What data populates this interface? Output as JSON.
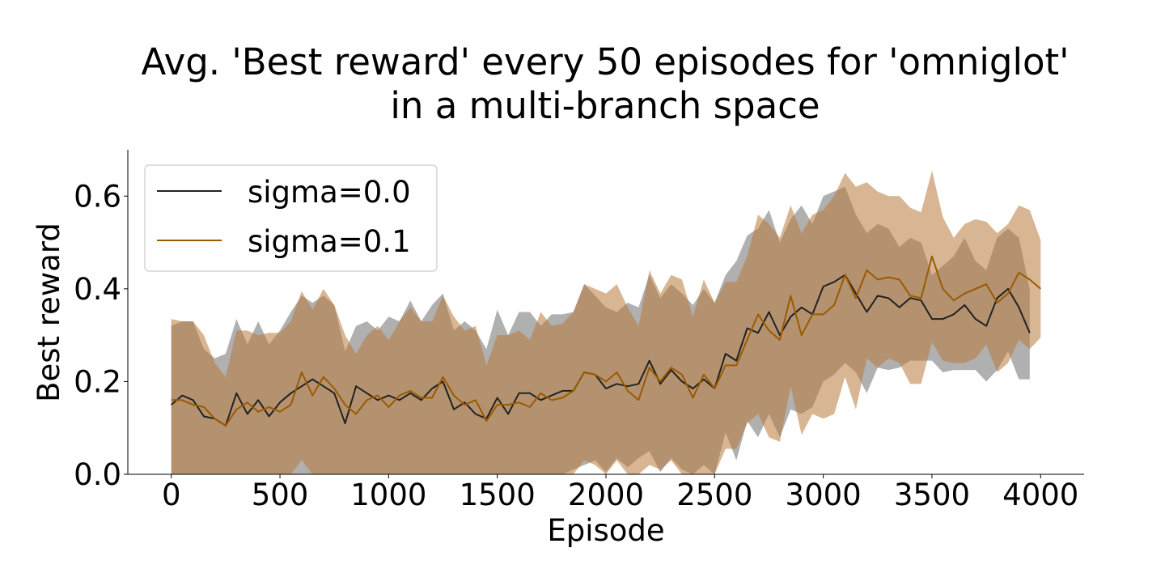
{
  "chart_data": {
    "type": "line",
    "title_line1": "Avg. 'Best reward' every 50 episodes for 'omniglot'",
    "title_line2": "in a multi-branch space",
    "xlabel": "Episode",
    "ylabel": "Best reward",
    "xlim": [
      -200,
      4200
    ],
    "ylim": [
      0.0,
      0.7
    ],
    "xticks": [
      0,
      500,
      1000,
      1500,
      2000,
      2500,
      3000,
      3500,
      4000
    ],
    "xtick_labels": [
      "0",
      "500",
      "1000",
      "1500",
      "2000",
      "2500",
      "3000",
      "3500",
      "4000"
    ],
    "yticks": [
      0.0,
      0.2,
      0.4,
      0.6
    ],
    "ytick_labels": [
      "0.0",
      "0.2",
      "0.4",
      "0.6"
    ],
    "grid": false,
    "legend_position": "upper-left",
    "series": [
      {
        "name": "sigma=0.0",
        "color": "#222222",
        "band_color": "#7f7f7f",
        "x": [
          0,
          50,
          100,
          150,
          200,
          250,
          300,
          350,
          400,
          450,
          500,
          550,
          600,
          650,
          700,
          750,
          800,
          850,
          900,
          950,
          1000,
          1050,
          1100,
          1150,
          1200,
          1250,
          1300,
          1350,
          1400,
          1450,
          1500,
          1550,
          1600,
          1650,
          1700,
          1750,
          1800,
          1850,
          1900,
          1950,
          2000,
          2050,
          2100,
          2150,
          2200,
          2250,
          2300,
          2350,
          2400,
          2450,
          2500,
          2550,
          2600,
          2650,
          2700,
          2750,
          2800,
          2850,
          2900,
          2950,
          3000,
          3050,
          3100,
          3150,
          3200,
          3250,
          3300,
          3350,
          3400,
          3450,
          3500,
          3550,
          3600,
          3650,
          3700,
          3750,
          3800,
          3850,
          3900,
          3950
        ],
        "values": [
          0.15,
          0.17,
          0.16,
          0.125,
          0.12,
          0.105,
          0.175,
          0.13,
          0.16,
          0.125,
          0.155,
          0.175,
          0.19,
          0.205,
          0.19,
          0.175,
          0.11,
          0.19,
          0.175,
          0.16,
          0.17,
          0.16,
          0.175,
          0.16,
          0.185,
          0.2,
          0.14,
          0.155,
          0.13,
          0.12,
          0.165,
          0.13,
          0.175,
          0.175,
          0.16,
          0.17,
          0.18,
          0.18,
          0.22,
          0.215,
          0.185,
          0.195,
          0.19,
          0.195,
          0.245,
          0.195,
          0.225,
          0.2,
          0.185,
          0.205,
          0.185,
          0.26,
          0.245,
          0.315,
          0.305,
          0.35,
          0.3,
          0.34,
          0.36,
          0.345,
          0.405,
          0.415,
          0.43,
          0.39,
          0.35,
          0.385,
          0.38,
          0.36,
          0.38,
          0.375,
          0.335,
          0.335,
          0.345,
          0.365,
          0.335,
          0.32,
          0.38,
          0.4,
          0.36,
          0.305
        ],
        "lower": [
          0.0,
          0.0,
          0.0,
          0.0,
          0.0,
          0.0,
          0.0,
          0.0,
          0.0,
          0.0,
          0.0,
          0.0,
          0.0,
          0.0,
          0.0,
          0.0,
          0.0,
          0.0,
          0.0,
          0.0,
          0.0,
          0.0,
          0.0,
          0.0,
          0.0,
          0.0,
          0.0,
          0.0,
          0.0,
          0.0,
          0.0,
          0.0,
          0.0,
          0.0,
          0.0,
          0.0,
          0.0,
          0.01,
          0.02,
          0.03,
          0.005,
          0.035,
          0.015,
          0.035,
          0.05,
          0.005,
          0.035,
          0.01,
          0.0,
          0.02,
          0.0,
          0.09,
          0.03,
          0.115,
          0.08,
          0.13,
          0.08,
          0.14,
          0.13,
          0.145,
          0.2,
          0.215,
          0.24,
          0.22,
          0.175,
          0.23,
          0.225,
          0.23,
          0.245,
          0.245,
          0.245,
          0.22,
          0.225,
          0.225,
          0.225,
          0.2,
          0.225,
          0.265,
          0.205,
          0.205
        ],
        "upper": [
          0.32,
          0.33,
          0.33,
          0.27,
          0.25,
          0.26,
          0.335,
          0.28,
          0.33,
          0.28,
          0.31,
          0.35,
          0.385,
          0.37,
          0.385,
          0.365,
          0.265,
          0.32,
          0.33,
          0.31,
          0.34,
          0.33,
          0.375,
          0.33,
          0.365,
          0.39,
          0.31,
          0.33,
          0.31,
          0.27,
          0.355,
          0.3,
          0.35,
          0.35,
          0.32,
          0.345,
          0.345,
          0.35,
          0.41,
          0.385,
          0.36,
          0.35,
          0.37,
          0.36,
          0.43,
          0.38,
          0.41,
          0.39,
          0.365,
          0.4,
          0.37,
          0.43,
          0.46,
          0.515,
          0.53,
          0.57,
          0.5,
          0.55,
          0.58,
          0.54,
          0.6,
          0.61,
          0.62,
          0.56,
          0.52,
          0.54,
          0.53,
          0.49,
          0.51,
          0.5,
          0.43,
          0.45,
          0.47,
          0.51,
          0.46,
          0.44,
          0.51,
          0.53,
          0.51,
          0.4
        ]
      },
      {
        "name": "sigma=0.1",
        "color": "#9a5a00",
        "band_color": "#b87a3a",
        "x": [
          0,
          50,
          100,
          150,
          200,
          250,
          300,
          350,
          400,
          450,
          500,
          550,
          600,
          650,
          700,
          750,
          800,
          850,
          900,
          950,
          1000,
          1050,
          1100,
          1150,
          1200,
          1250,
          1300,
          1350,
          1400,
          1450,
          1500,
          1550,
          1600,
          1650,
          1700,
          1750,
          1800,
          1850,
          1900,
          1950,
          2000,
          2050,
          2100,
          2150,
          2200,
          2250,
          2300,
          2350,
          2400,
          2450,
          2500,
          2550,
          2600,
          2650,
          2700,
          2750,
          2800,
          2850,
          2900,
          2950,
          3000,
          3050,
          3100,
          3150,
          3200,
          3250,
          3300,
          3350,
          3400,
          3450,
          3500,
          3550,
          3600,
          3650,
          3700,
          3750,
          3800,
          3850,
          3900,
          3950,
          4000
        ],
        "values": [
          0.16,
          0.16,
          0.15,
          0.145,
          0.12,
          0.105,
          0.14,
          0.155,
          0.135,
          0.145,
          0.135,
          0.15,
          0.22,
          0.17,
          0.21,
          0.185,
          0.15,
          0.13,
          0.16,
          0.17,
          0.145,
          0.17,
          0.18,
          0.165,
          0.165,
          0.21,
          0.17,
          0.15,
          0.16,
          0.115,
          0.15,
          0.15,
          0.155,
          0.145,
          0.175,
          0.16,
          0.165,
          0.18,
          0.22,
          0.215,
          0.2,
          0.22,
          0.18,
          0.16,
          0.23,
          0.2,
          0.23,
          0.215,
          0.165,
          0.215,
          0.185,
          0.235,
          0.235,
          0.29,
          0.345,
          0.31,
          0.29,
          0.385,
          0.3,
          0.345,
          0.345,
          0.365,
          0.43,
          0.38,
          0.44,
          0.42,
          0.425,
          0.42,
          0.385,
          0.38,
          0.47,
          0.4,
          0.375,
          0.39,
          0.4,
          0.41,
          0.37,
          0.39,
          0.435,
          0.42,
          0.4
        ],
        "lower": [
          0.0,
          0.0,
          0.0,
          0.0,
          0.0,
          0.0,
          0.0,
          0.0,
          0.0,
          0.0,
          0.0,
          0.0,
          0.03,
          0.0,
          0.0,
          0.0,
          0.0,
          0.0,
          0.0,
          0.0,
          0.0,
          0.0,
          0.0,
          0.0,
          0.0,
          0.0,
          0.0,
          0.0,
          0.0,
          0.0,
          0.0,
          0.0,
          0.0,
          0.0,
          0.0,
          0.0,
          0.0,
          0.0,
          0.03,
          0.02,
          0.0,
          0.03,
          0.0,
          0.0,
          0.02,
          0.01,
          0.03,
          0.0,
          0.0,
          0.0,
          0.0,
          0.055,
          0.055,
          0.11,
          0.13,
          0.08,
          0.07,
          0.19,
          0.085,
          0.13,
          0.12,
          0.13,
          0.21,
          0.14,
          0.25,
          0.23,
          0.25,
          0.24,
          0.195,
          0.195,
          0.285,
          0.245,
          0.24,
          0.24,
          0.25,
          0.28,
          0.22,
          0.24,
          0.29,
          0.27,
          0.295
        ],
        "upper": [
          0.335,
          0.33,
          0.33,
          0.3,
          0.24,
          0.21,
          0.31,
          0.31,
          0.3,
          0.305,
          0.305,
          0.33,
          0.395,
          0.355,
          0.4,
          0.365,
          0.3,
          0.26,
          0.3,
          0.32,
          0.29,
          0.33,
          0.36,
          0.33,
          0.33,
          0.385,
          0.34,
          0.31,
          0.32,
          0.235,
          0.3,
          0.3,
          0.31,
          0.29,
          0.35,
          0.32,
          0.325,
          0.35,
          0.41,
          0.4,
          0.39,
          0.41,
          0.36,
          0.32,
          0.44,
          0.39,
          0.43,
          0.42,
          0.34,
          0.42,
          0.37,
          0.415,
          0.415,
          0.47,
          0.56,
          0.54,
          0.51,
          0.58,
          0.52,
          0.56,
          0.57,
          0.6,
          0.65,
          0.62,
          0.63,
          0.61,
          0.6,
          0.6,
          0.575,
          0.565,
          0.655,
          0.555,
          0.51,
          0.54,
          0.55,
          0.545,
          0.52,
          0.54,
          0.58,
          0.57,
          0.505
        ]
      }
    ]
  }
}
